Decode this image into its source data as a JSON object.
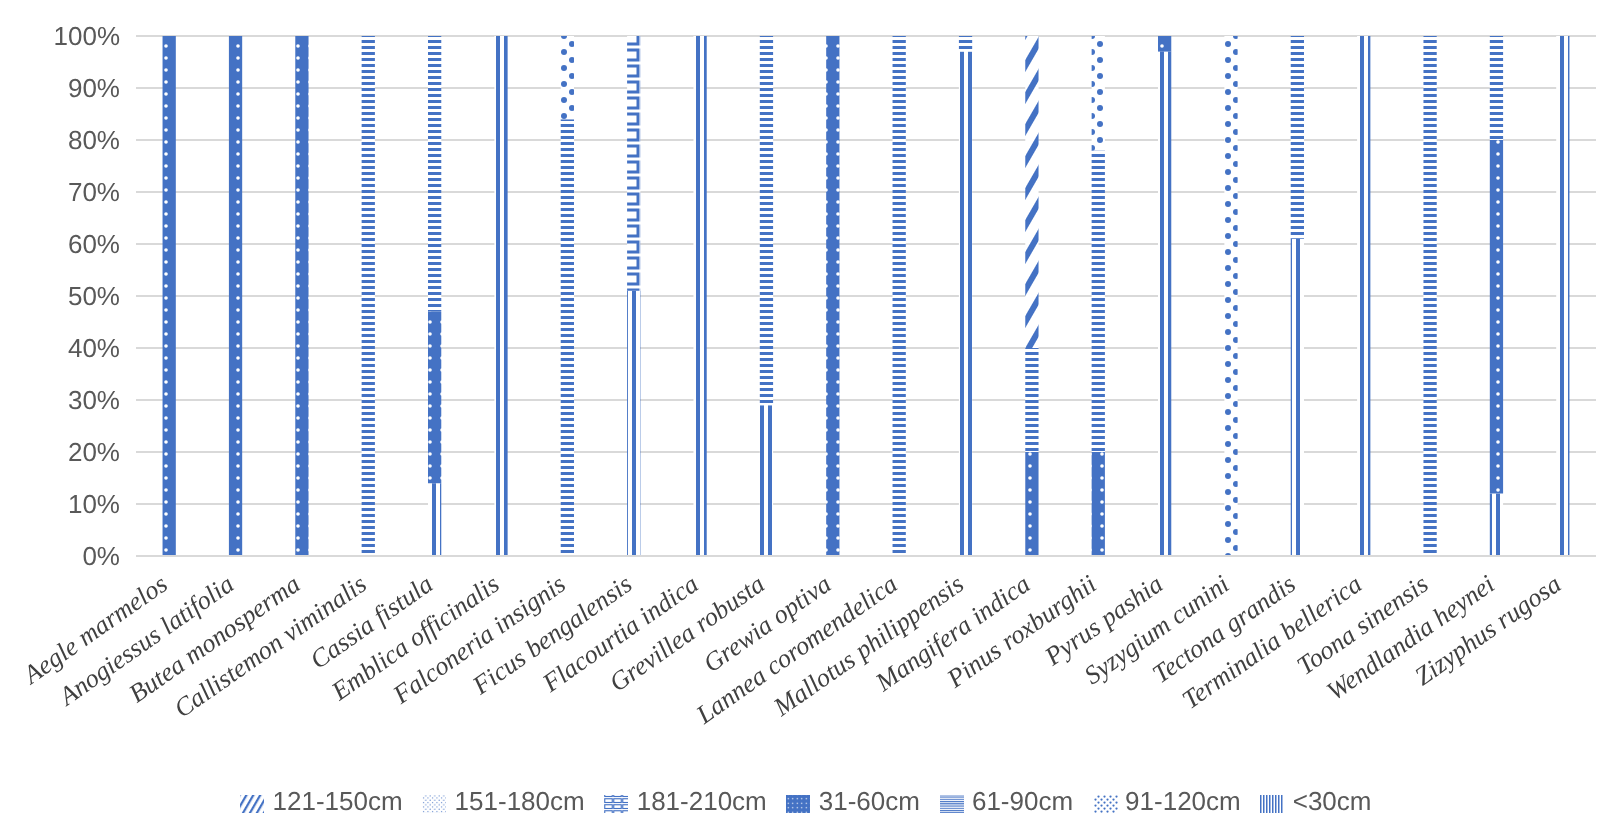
{
  "chart_data": {
    "type": "bar",
    "stacked": true,
    "categories": [
      "Aegle marmelos",
      "Anogiessus latifolia",
      "Butea monosperma",
      "Callistemon viminalis",
      "Cassia fistula",
      "Emblica officinalis",
      "Falconeria insignis",
      "Ficus bengalensis",
      "Flacourtia indica",
      "Grevillea robusta",
      "Grewia optiva",
      "Lannea coromendelica",
      "Mallotus philippensis",
      "Mangifera indica",
      "Pinus roxburghii",
      "Pyrus pashia",
      "Syzygium cunini",
      "Tectona grandis",
      "Terminalia bellerica",
      "Toona sinensis",
      "Wendlandia heynei",
      "Zizyphus rugosa"
    ],
    "series": [
      {
        "name": "<30cm",
        "color": "#4472c4",
        "values": [
          0,
          0,
          0,
          0,
          14,
          100,
          0,
          51,
          100,
          29,
          0,
          0,
          97,
          0,
          0,
          97,
          0,
          61,
          100,
          0,
          12,
          100
        ]
      },
      {
        "name": "31-60cm",
        "color": "#4472c4",
        "values": [
          100,
          100,
          100,
          0,
          33,
          0,
          0,
          0,
          0,
          0,
          100,
          0,
          0,
          20,
          20,
          3,
          0,
          0,
          0,
          0,
          68,
          0
        ]
      },
      {
        "name": "61-90cm",
        "color": "#4472c4",
        "values": [
          0,
          0,
          0,
          100,
          53,
          0,
          84,
          0,
          0,
          71,
          0,
          100,
          3,
          20,
          58,
          0,
          0,
          39,
          0,
          100,
          20,
          0
        ]
      },
      {
        "name": "91-120cm",
        "color": "#4472c4",
        "values": [
          0,
          0,
          0,
          0,
          0,
          0,
          16,
          0,
          0,
          0,
          0,
          0,
          0,
          0,
          22,
          0,
          100,
          0,
          0,
          0,
          0,
          0
        ]
      },
      {
        "name": "121-150cm",
        "color": "#4472c4",
        "values": [
          0,
          0,
          0,
          0,
          0,
          0,
          0,
          0,
          0,
          0,
          0,
          0,
          0,
          60,
          0,
          0,
          0,
          0,
          0,
          0,
          0,
          0
        ]
      },
      {
        "name": "151-180cm",
        "color": "#4472c4",
        "values": [
          0,
          0,
          0,
          0,
          0,
          0,
          0,
          0,
          0,
          0,
          0,
          0,
          0,
          0,
          0,
          0,
          0,
          0,
          0,
          0,
          0,
          0
        ]
      },
      {
        "name": "181-210cm",
        "color": "#4472c4",
        "values": [
          0,
          0,
          0,
          0,
          0,
          0,
          0,
          49,
          0,
          0,
          0,
          0,
          0,
          0,
          0,
          0,
          0,
          0,
          0,
          0,
          0,
          0
        ]
      }
    ],
    "ylim": [
      0,
      100
    ],
    "yticks": [
      {
        "value": 0,
        "label": "0%"
      },
      {
        "value": 10,
        "label": "10%"
      },
      {
        "value": 20,
        "label": "20%"
      },
      {
        "value": 30,
        "label": "30%"
      },
      {
        "value": 40,
        "label": "40%"
      },
      {
        "value": 50,
        "label": "50%"
      },
      {
        "value": 60,
        "label": "60%"
      },
      {
        "value": 70,
        "label": "70%"
      },
      {
        "value": 80,
        "label": "80%"
      },
      {
        "value": 90,
        "label": "90%"
      },
      {
        "value": 100,
        "label": "100%"
      }
    ],
    "grid": "y",
    "legend": "bottom"
  }
}
